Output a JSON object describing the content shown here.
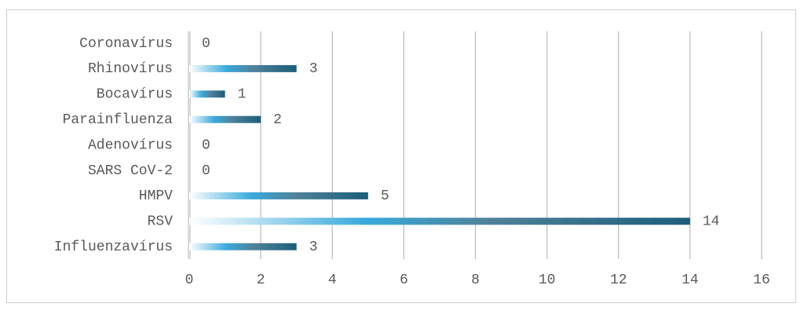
{
  "chart_data": {
    "type": "barh",
    "categories": [
      "Coronavírus",
      "Rhinovírus",
      "Bocavírus",
      "Parainfluenza",
      "Adenovírus",
      "SARS CoV-2",
      "HMPV ",
      "RSV",
      "Influenzavírus"
    ],
    "values": [
      0,
      3,
      1,
      2,
      0,
      0,
      5,
      14,
      3
    ],
    "color": "#1b5e7b",
    "xlim": [
      0,
      16
    ],
    "xticks": [
      0,
      2,
      4,
      6,
      8,
      10,
      12,
      14,
      16
    ],
    "grid": true
  }
}
